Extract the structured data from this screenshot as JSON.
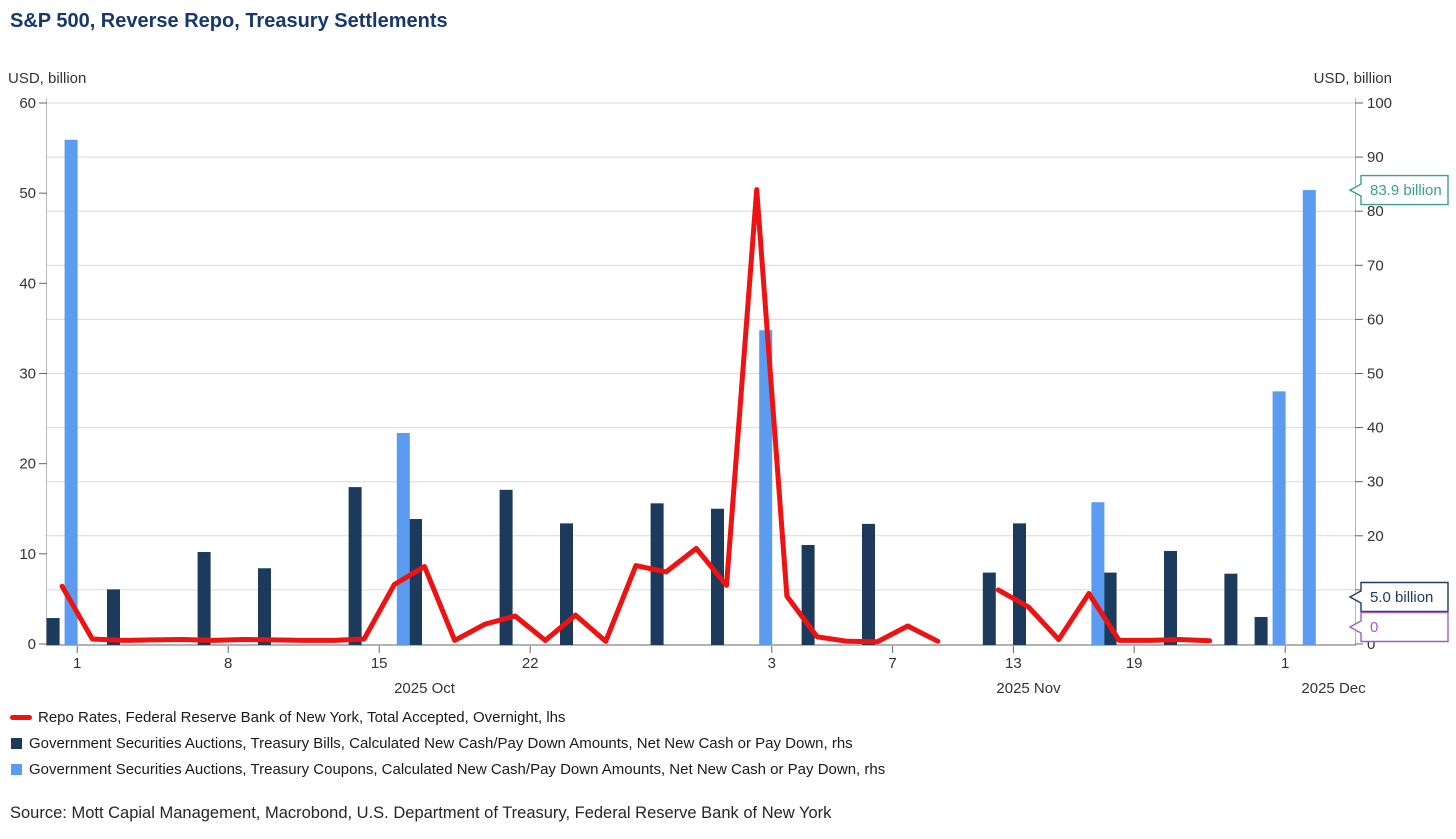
{
  "title": "S&P 500, Reverse Repo, Treasury Settlements",
  "left_axis_unit": "USD, billion",
  "right_axis_unit": "USD, billion",
  "source": "Source: Mott Capial Management, Macrobond, U.S. Department of Treasury, Federal Reserve Bank of New York",
  "colors": {
    "repo_red": "#ee1312",
    "bills_navy": "#1c3a5c",
    "coupons_blue": "#5b9bf0",
    "title_navy": "#17386e",
    "callout_teal": "#3aa08e",
    "callout_navy": "#1e3a66",
    "callout_purple": "#a15cc4",
    "axis_text": "#333333",
    "grid": "#d9d9d9",
    "axis_line": "#b8b8b8",
    "baseline": "#999999",
    "tick": "#666666"
  },
  "legend": [
    {
      "swatch": "line",
      "color_key": "repo_red",
      "label": "Repo Rates, Federal Reserve Bank of New York, Total Accepted, Overnight, lhs"
    },
    {
      "swatch": "square",
      "color_key": "bills_navy",
      "label": "Government Securities Auctions, Treasury Bills, Calculated New Cash/Pay Down Amounts, Net New Cash or Pay Down, rhs"
    },
    {
      "swatch": "square",
      "color_key": "coupons_blue",
      "label": "Government Securities Auctions, Treasury Coupons, Calculated New Cash/Pay Down Amounts, Net New Cash or Pay Down, rhs"
    }
  ],
  "callouts": [
    {
      "name": "coupons-last-value-callout",
      "text": "83.9 billion",
      "color_key": "callout_teal",
      "anchor": "value",
      "value_rhs": 83.9
    },
    {
      "name": "bills-last-value-callout",
      "text": "5.0 billion",
      "color_key": "callout_navy",
      "anchor": "stack1",
      "value_rhs": 5.0
    },
    {
      "name": "repo-last-value-callout",
      "text": "0",
      "color_key": "callout_purple",
      "anchor": "stack2",
      "value_lhs": 0
    }
  ],
  "chart_data": {
    "type": "mixed",
    "subtype": "bar+line, dual axis, daily trading-day x-axis",
    "left_axis": {
      "label": "USD, billion",
      "min": 0,
      "max": 60,
      "tick_step": 10
    },
    "right_axis": {
      "label": "USD, billion",
      "min": 0,
      "max": 100,
      "tick_step": 10
    },
    "x_axis": {
      "range": "2025 Sep 30 - 2025 Dec 3",
      "total_days": 43.3,
      "ticks": [
        {
          "i": 1,
          "label": "1"
        },
        {
          "i": 6,
          "label": "8"
        },
        {
          "i": 11,
          "label": "15"
        },
        {
          "i": 16,
          "label": "22"
        },
        {
          "i": 24,
          "label": "3"
        },
        {
          "i": 28,
          "label": "7"
        },
        {
          "i": 32,
          "label": "13"
        },
        {
          "i": 36,
          "label": "19"
        },
        {
          "i": 41,
          "label": "1"
        }
      ],
      "month_labels": [
        {
          "label": "2025 Oct",
          "i_center": 12.5
        },
        {
          "label": "2025 Nov",
          "i_center": 32.5
        },
        {
          "label": "2025 Dec",
          "i_center": 42.6
        }
      ]
    },
    "series": [
      {
        "name": "Repo Rates, Federal Reserve Bank of New York, Total Accepted, Overnight",
        "axis": "lhs",
        "type": "line",
        "color_key": "repo_red",
        "segments": [
          [
            {
              "date": "Sep 30",
              "i": 0,
              "value": 6.4
            },
            {
              "date": "Oct 1",
              "i": 1,
              "value": 0.55
            },
            {
              "date": "Oct 2",
              "i": 2,
              "value": 0.4
            },
            {
              "date": "Oct 3",
              "i": 3,
              "value": 0.45
            },
            {
              "date": "Oct 6",
              "i": 4,
              "value": 0.5
            },
            {
              "date": "Oct 7",
              "i": 5,
              "value": 0.4
            },
            {
              "date": "Oct 8",
              "i": 6,
              "value": 0.5
            },
            {
              "date": "Oct 9",
              "i": 7,
              "value": 0.45
            },
            {
              "date": "Oct 10",
              "i": 8,
              "value": 0.4
            },
            {
              "date": "Oct 13",
              "i": 9,
              "value": 0.4
            },
            {
              "date": "Oct 14",
              "i": 10,
              "value": 0.55
            },
            {
              "date": "Oct 15",
              "i": 11,
              "value": 6.6
            },
            {
              "date": "Oct 16",
              "i": 12,
              "value": 8.6
            },
            {
              "date": "Oct 17",
              "i": 13,
              "value": 0.4
            },
            {
              "date": "Oct 20",
              "i": 14,
              "value": 2.2
            },
            {
              "date": "Oct 21",
              "i": 15,
              "value": 3.1
            },
            {
              "date": "Oct 22",
              "i": 16,
              "value": 0.4
            },
            {
              "date": "Oct 23",
              "i": 17,
              "value": 3.2
            },
            {
              "date": "Oct 24",
              "i": 18,
              "value": 0.3
            },
            {
              "date": "Oct 27",
              "i": 19,
              "value": 8.7
            },
            {
              "date": "Oct 28",
              "i": 20,
              "value": 8.0
            },
            {
              "date": "Oct 29",
              "i": 21,
              "value": 10.6
            },
            {
              "date": "Oct 30",
              "i": 22,
              "value": 6.5
            },
            {
              "date": "Oct 31",
              "i": 23,
              "value": 50.4
            },
            {
              "date": "Nov 3",
              "i": 24,
              "value": 5.3
            },
            {
              "date": "Nov 4",
              "i": 25,
              "value": 0.8
            },
            {
              "date": "Nov 5",
              "i": 26,
              "value": 0.3
            },
            {
              "date": "Nov 6",
              "i": 27,
              "value": 0.25
            },
            {
              "date": "Nov 7",
              "i": 28,
              "value": 2.0
            },
            {
              "date": "Nov 10",
              "i": 29,
              "value": 0.3
            }
          ],
          [
            {
              "date": "Nov 12",
              "i": 31,
              "value": 6.0
            },
            {
              "date": "Nov 13",
              "i": 32,
              "value": 4.1
            },
            {
              "date": "Nov 14",
              "i": 33,
              "value": 0.5
            },
            {
              "date": "Nov 17",
              "i": 34,
              "value": 5.6
            },
            {
              "date": "Nov 18",
              "i": 35,
              "value": 0.4
            },
            {
              "date": "Nov 19",
              "i": 36,
              "value": 0.4
            },
            {
              "date": "Nov 20",
              "i": 37,
              "value": 0.5
            },
            {
              "date": "Nov 21",
              "i": 38,
              "value": 0.35
            }
          ]
        ]
      },
      {
        "name": "Government Securities Auctions, Treasury Bills, Calculated New Cash/Pay Down Amounts, Net New Cash or Pay Down",
        "axis": "rhs",
        "type": "bar",
        "color_key": "bills_navy",
        "dodge": -9,
        "points": [
          {
            "date": "Sep 30",
            "i": 0,
            "value": 4.8
          },
          {
            "date": "Oct 2",
            "i": 2,
            "value": 10.1
          },
          {
            "date": "Oct 7",
            "i": 5,
            "value": 17.0
          },
          {
            "date": "Oct 9",
            "i": 7,
            "value": 14.0
          },
          {
            "date": "Oct 14",
            "i": 10,
            "value": 29.0
          },
          {
            "date": "Oct 16",
            "i": 12,
            "value": 23.1
          },
          {
            "date": "Oct 21",
            "i": 15,
            "value": 28.5
          },
          {
            "date": "Oct 23",
            "i": 17,
            "value": 22.3
          },
          {
            "date": "Oct 28",
            "i": 20,
            "value": 26.0
          },
          {
            "date": "Oct 30",
            "i": 22,
            "value": 25.0
          },
          {
            "date": "Nov 4",
            "i": 25,
            "value": 18.3
          },
          {
            "date": "Nov 6",
            "i": 27,
            "value": 22.2
          },
          {
            "date": "Nov 12",
            "i": 31,
            "value": 13.2
          },
          {
            "date": "Nov 13",
            "i": 32,
            "value": 22.3
          },
          {
            "date": "Nov 18",
            "i": 35,
            "value": 13.2
          },
          {
            "date": "Nov 20",
            "i": 37,
            "value": 17.2
          },
          {
            "date": "Nov 24",
            "i": 39,
            "value": 13.0
          },
          {
            "date": "Nov 25",
            "i": 40,
            "value": 5.0
          }
        ]
      },
      {
        "name": "Government Securities Auctions, Treasury Coupons, Calculated New Cash/Pay Down Amounts, Net New Cash or Pay Down",
        "axis": "rhs",
        "type": "bar",
        "color_key": "coupons_blue",
        "dodge": 9,
        "points": [
          {
            "date": "Sep 30",
            "i": 0,
            "value": 93.2
          },
          {
            "date": "Oct 15",
            "i": 11,
            "value": 39.0
          },
          {
            "date": "Oct 31",
            "i": 23,
            "value": 58.0
          },
          {
            "date": "Nov 17",
            "i": 34,
            "value": 26.2
          },
          {
            "date": "Nov 25",
            "i": 40,
            "value": 46.7
          },
          {
            "date": "Dec 1",
            "i": 41,
            "value": 83.9
          }
        ]
      }
    ]
  }
}
